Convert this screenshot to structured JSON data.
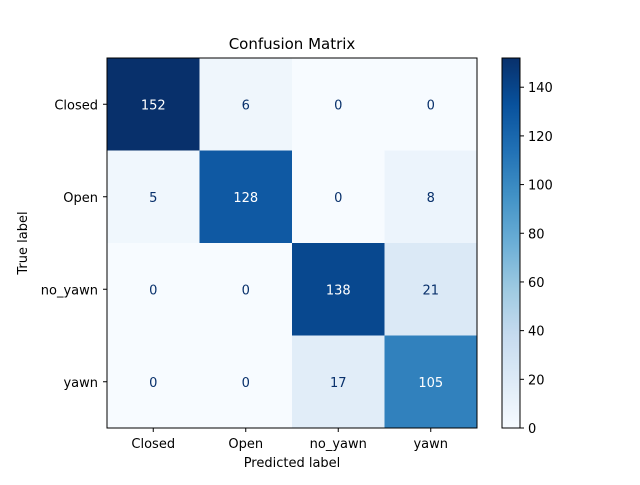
{
  "chart_data": {
    "type": "heatmap",
    "title": "Confusion Matrix",
    "xlabel": "Predicted label",
    "ylabel": "True label",
    "x_categories": [
      "Closed",
      "Open",
      "no_yawn",
      "yawn"
    ],
    "y_categories": [
      "Closed",
      "Open",
      "no_yawn",
      "yawn"
    ],
    "values": [
      [
        152,
        6,
        0,
        0
      ],
      [
        5,
        128,
        0,
        8
      ],
      [
        0,
        0,
        138,
        21
      ],
      [
        0,
        0,
        17,
        105
      ]
    ],
    "colormap": "Blues",
    "color_range": [
      0,
      152
    ],
    "colorbar_ticks": [
      "0",
      "20",
      "40",
      "60",
      "80",
      "100",
      "120",
      "140"
    ],
    "colorbar_tick_values": [
      0,
      20,
      40,
      60,
      80,
      100,
      120,
      140
    ]
  }
}
